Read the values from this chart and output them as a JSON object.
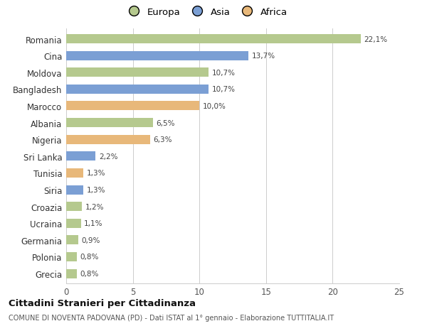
{
  "countries": [
    "Romania",
    "Cina",
    "Moldova",
    "Bangladesh",
    "Marocco",
    "Albania",
    "Nigeria",
    "Sri Lanka",
    "Tunisia",
    "Siria",
    "Croazia",
    "Ucraina",
    "Germania",
    "Polonia",
    "Grecia"
  ],
  "values": [
    22.1,
    13.7,
    10.7,
    10.7,
    10.0,
    6.5,
    6.3,
    2.2,
    1.3,
    1.3,
    1.2,
    1.1,
    0.9,
    0.8,
    0.8
  ],
  "labels": [
    "22,1%",
    "13,7%",
    "10,7%",
    "10,7%",
    "10,0%",
    "6,5%",
    "6,3%",
    "2,2%",
    "1,3%",
    "1,3%",
    "1,2%",
    "1,1%",
    "0,9%",
    "0,8%",
    "0,8%"
  ],
  "continents": [
    "Europa",
    "Asia",
    "Europa",
    "Asia",
    "Africa",
    "Europa",
    "Africa",
    "Asia",
    "Africa",
    "Asia",
    "Europa",
    "Europa",
    "Europa",
    "Europa",
    "Europa"
  ],
  "colors": {
    "Europa": "#b5c98e",
    "Asia": "#7b9fd4",
    "Africa": "#e8b87a"
  },
  "legend_order": [
    "Europa",
    "Asia",
    "Africa"
  ],
  "title": "Cittadini Stranieri per Cittadinanza",
  "subtitle": "COMUNE DI NOVENTA PADOVANA (PD) - Dati ISTAT al 1° gennaio - Elaborazione TUTTITALIA.IT",
  "xlim": [
    0,
    25
  ],
  "xticks": [
    0,
    5,
    10,
    15,
    20,
    25
  ],
  "background_color": "#ffffff",
  "grid_color": "#cccccc",
  "bar_height": 0.55
}
